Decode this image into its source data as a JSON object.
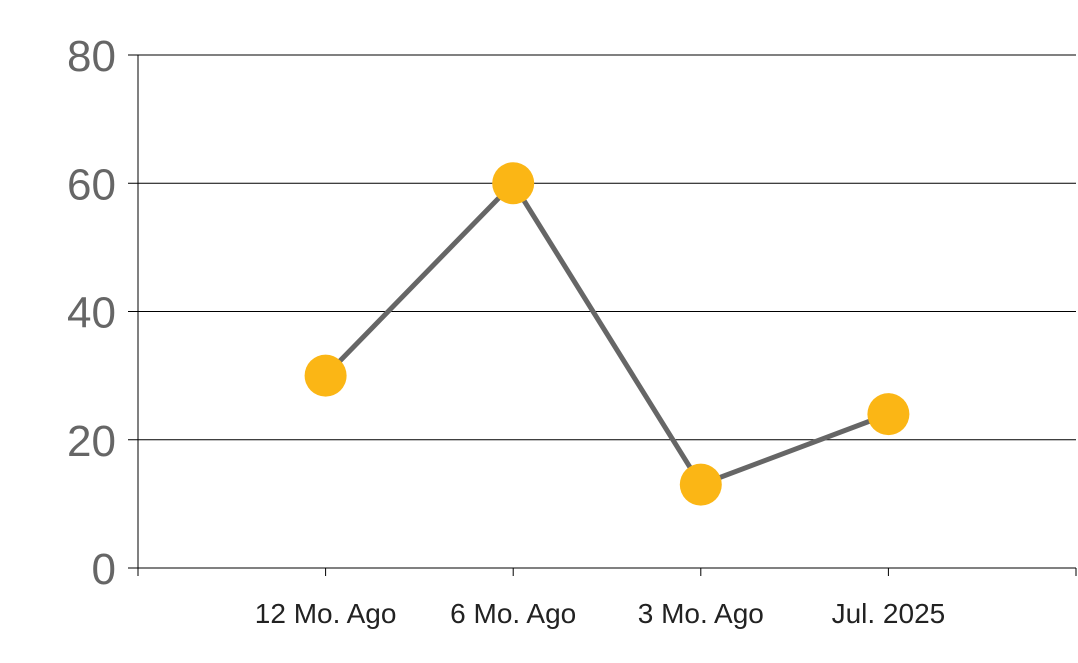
{
  "chart_data": {
    "type": "line",
    "title": "",
    "xlabel": "",
    "ylabel": "",
    "categories": [
      "12 Mo. Ago",
      "6 Mo. Ago",
      "3 Mo. Ago",
      "Jul. 2025"
    ],
    "series": [
      {
        "values": [
          30,
          60,
          13,
          24
        ],
        "line_color": "#666666",
        "marker_color": "#FBB615"
      }
    ],
    "ylim": [
      0,
      80
    ],
    "yticks": [
      0,
      20,
      40,
      60,
      80
    ],
    "grid": true,
    "legend": "none",
    "axis_color": "#000000",
    "ytick_color": "#666666"
  }
}
